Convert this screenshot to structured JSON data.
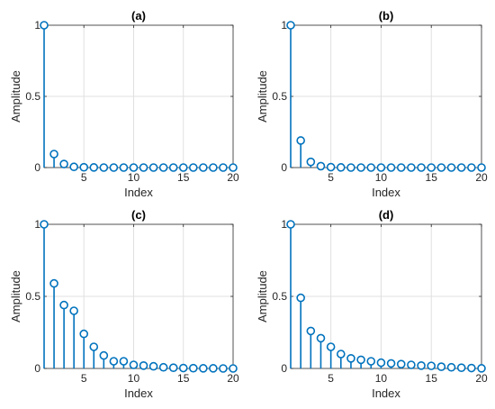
{
  "colors": {
    "stem": "#0072bd",
    "grid": "#e0e0e0",
    "axis": "#262626"
  },
  "chart_data": [
    {
      "type": "stem",
      "title": "(a)",
      "xlabel": "Index",
      "ylabel": "Amplitude",
      "xlim": [
        1,
        20
      ],
      "ylim": [
        0,
        1
      ],
      "xticks": [
        5,
        10,
        15,
        20
      ],
      "yticks": [
        0,
        0.5,
        1
      ],
      "grid": true,
      "x": [
        1,
        2,
        3,
        4,
        5,
        6,
        7,
        8,
        9,
        10,
        11,
        12,
        13,
        14,
        15,
        16,
        17,
        18,
        19,
        20
      ],
      "values": [
        1,
        0.095,
        0.025,
        0.005,
        0.002,
        0.001,
        0,
        0,
        0,
        0,
        0,
        0,
        0,
        0,
        0,
        0,
        0,
        0,
        0,
        0
      ]
    },
    {
      "type": "stem",
      "title": "(b)",
      "xlabel": "Index",
      "ylabel": "Amplitude",
      "xlim": [
        1,
        20
      ],
      "ylim": [
        0,
        1
      ],
      "xticks": [
        5,
        10,
        15,
        20
      ],
      "yticks": [
        0,
        0.5,
        1
      ],
      "grid": true,
      "x": [
        1,
        2,
        3,
        4,
        5,
        6,
        7,
        8,
        9,
        10,
        11,
        12,
        13,
        14,
        15,
        16,
        17,
        18,
        19,
        20
      ],
      "values": [
        1,
        0.19,
        0.04,
        0.01,
        0.003,
        0.001,
        0,
        0,
        0,
        0,
        0,
        0,
        0,
        0,
        0,
        0,
        0,
        0,
        0,
        0
      ]
    },
    {
      "type": "stem",
      "title": "(c)",
      "xlabel": "Index",
      "ylabel": "Amplitude",
      "xlim": [
        1,
        20
      ],
      "ylim": [
        0,
        1
      ],
      "xticks": [
        5,
        10,
        15,
        20
      ],
      "yticks": [
        0,
        0.5,
        1
      ],
      "grid": true,
      "x": [
        1,
        2,
        3,
        4,
        5,
        6,
        7,
        8,
        9,
        10,
        11,
        12,
        13,
        14,
        15,
        16,
        17,
        18,
        19,
        20
      ],
      "values": [
        1,
        0.59,
        0.44,
        0.4,
        0.24,
        0.15,
        0.09,
        0.05,
        0.05,
        0.025,
        0.02,
        0.015,
        0.008,
        0.005,
        0.003,
        0.002,
        0.001,
        0.001,
        0,
        0
      ]
    },
    {
      "type": "stem",
      "title": "(d)",
      "xlabel": "Index",
      "ylabel": "Amplitude",
      "xlim": [
        1,
        20
      ],
      "ylim": [
        0,
        1
      ],
      "xticks": [
        5,
        10,
        15,
        20
      ],
      "yticks": [
        0,
        0.5,
        1
      ],
      "grid": true,
      "x": [
        1,
        2,
        3,
        4,
        5,
        6,
        7,
        8,
        9,
        10,
        11,
        12,
        13,
        14,
        15,
        16,
        17,
        18,
        19,
        20
      ],
      "values": [
        1,
        0.49,
        0.26,
        0.21,
        0.15,
        0.1,
        0.07,
        0.06,
        0.05,
        0.04,
        0.035,
        0.03,
        0.025,
        0.02,
        0.018,
        0.012,
        0.008,
        0.005,
        0.003,
        0.001
      ]
    }
  ]
}
